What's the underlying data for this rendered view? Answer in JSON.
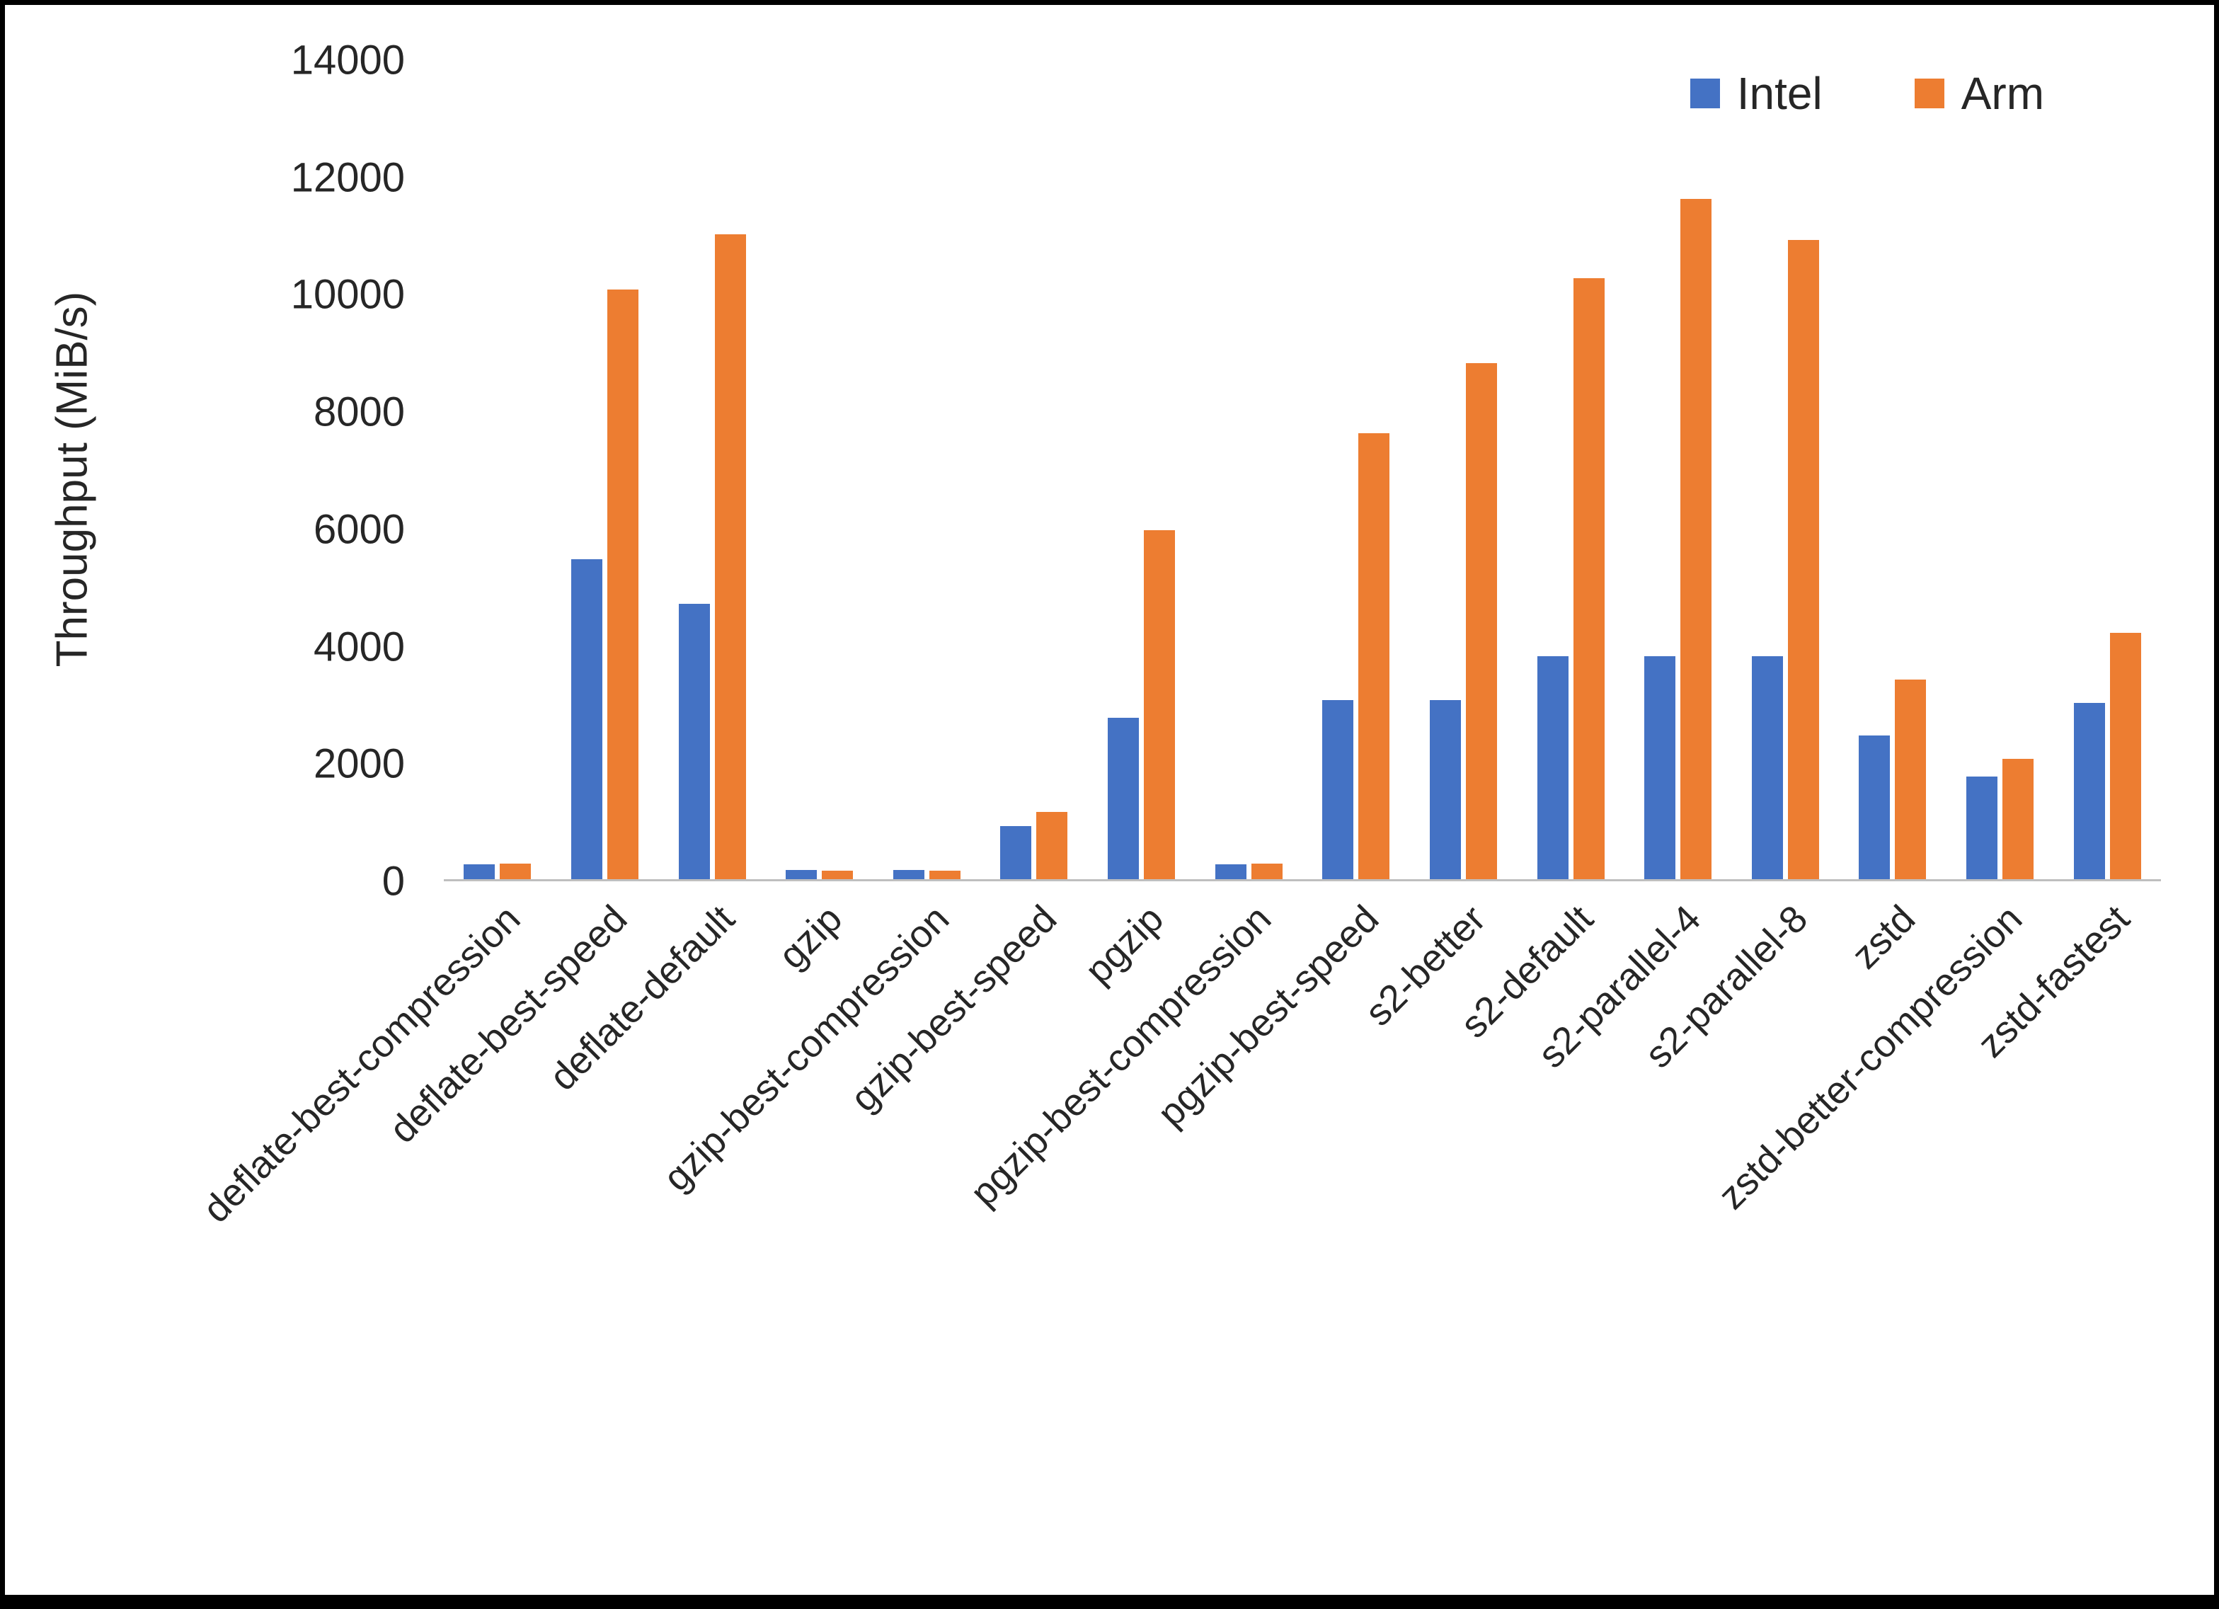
{
  "chart_data": {
    "type": "bar",
    "title": "",
    "ylabel": "Throughput (MiB/s)",
    "xlabel": "",
    "ylim": [
      0,
      14000
    ],
    "ytick_step": 2000,
    "grid": false,
    "legend_position": "top-right",
    "categories": [
      "deflate-best-compression",
      "deflate-best-speed",
      "deflate-default",
      "gzip",
      "gzip-best-compression",
      "gzip-best-speed",
      "pgzip",
      "pgzip-best-compression",
      "pgzip-best-speed",
      "s2-better",
      "s2-default",
      "s2-parallel-4",
      "s2-parallel-8",
      "zstd",
      "zstd-better-compression",
      "zstd-fastest"
    ],
    "series": [
      {
        "name": "Intel",
        "color": "#4472C4",
        "values": [
          250,
          5450,
          4700,
          160,
          160,
          900,
          2750,
          250,
          3050,
          3050,
          3800,
          3800,
          3800,
          2450,
          1750,
          3000
        ]
      },
      {
        "name": "Arm",
        "color": "#ED7D31",
        "values": [
          260,
          10050,
          11000,
          140,
          140,
          1150,
          5950,
          260,
          7600,
          8800,
          10250,
          11600,
          10900,
          3400,
          2050,
          4200
        ]
      }
    ]
  }
}
